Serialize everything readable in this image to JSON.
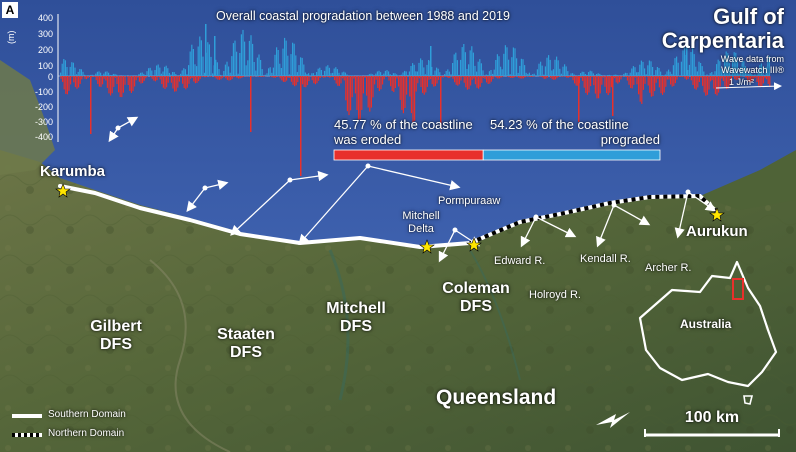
{
  "panel_label": "A",
  "chart": {
    "title": "Overall coastal progradation between 1988 and 2019",
    "y_axis_label": "(m)",
    "y_ticks": [
      "400",
      "300",
      "200",
      "100",
      "0",
      "-100",
      "-200",
      "-300",
      "-400"
    ],
    "eroded_percent_text": "45.77 % of the coastline",
    "eroded_suffix": "was eroded",
    "prograded_percent_text": "54.23 % of the coastline",
    "prograded_suffix": "prograded",
    "eroded_fraction": 0.4577,
    "prograded_fraction": 0.5423,
    "eroded_color": "#e8302b",
    "prograded_color": "#2f9ed9"
  },
  "gulf": {
    "line1": "Gulf of",
    "line2": "Carpentaria"
  },
  "wave_legend": {
    "line1": "Wave data from",
    "line2": "Wavewatch III®",
    "scale": "1 J/m²"
  },
  "places": {
    "karumba": "Karumba",
    "pormpuraaw": "Pormpuraaw",
    "mitchell_delta_1": "Mitchell",
    "mitchell_delta_2": "Delta",
    "aurukun": "Aurukun",
    "edward": "Edward R.",
    "kendall": "Kendall R.",
    "archer": "Archer R.",
    "holroyd": "Holroyd R.",
    "coleman_1": "Coleman",
    "coleman_2": "DFS",
    "gilbert_1": "Gilbert",
    "gilbert_2": "DFS",
    "staaten_1": "Staaten",
    "staaten_2": "DFS",
    "mitchell_1": "Mitchell",
    "mitchell_2": "DFS",
    "queensland": "Queensland",
    "australia": "Australia"
  },
  "legend": {
    "southern": "Southern Domain",
    "northern": "Northern Domain"
  },
  "scale_bar": "100 km",
  "colors": {
    "sea": "#3b5fae",
    "land": "#5b6b3e",
    "star": "#ffe600",
    "inset_box": "#e8302b"
  }
}
